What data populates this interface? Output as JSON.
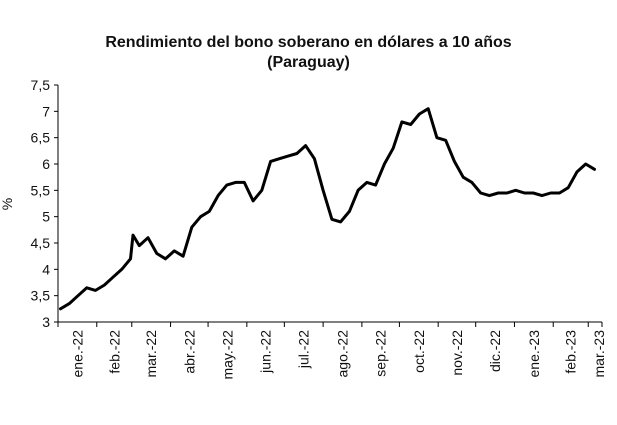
{
  "chart_data": {
    "type": "line",
    "title": "Rendimiento del bono soberano en dólares a 10 años",
    "subtitle": "(Paraguay)",
    "xlabel": "",
    "ylabel": "%",
    "ylim": [
      3,
      7.5
    ],
    "yticks": [
      "3",
      "3,5",
      "4",
      "4,5",
      "5",
      "5,5",
      "6",
      "6,5",
      "7",
      "7,5"
    ],
    "ytick_values": [
      3,
      3.5,
      4,
      4.5,
      5,
      5.5,
      6,
      6.5,
      7,
      7.5
    ],
    "categories": [
      "ene.-22",
      "feb.-22",
      "mar.-22",
      "abr.-22",
      "may.-22",
      "jun.-22",
      "jul.-22",
      "ago.-22",
      "sep.-22",
      "oct.-22",
      "nov.-22",
      "dic.-22",
      "ene.-23",
      "feb.-23",
      "mar.-23"
    ],
    "grid": false,
    "legend": "none",
    "line_color": "#000000",
    "series": [
      {
        "name": "",
        "x": [
          "2022-01-03",
          "2022-01-10",
          "2022-01-17",
          "2022-01-24",
          "2022-01-31",
          "2022-02-07",
          "2022-02-14",
          "2022-02-21",
          "2022-02-28",
          "2022-03-02",
          "2022-03-07",
          "2022-03-14",
          "2022-03-21",
          "2022-03-28",
          "2022-04-04",
          "2022-04-11",
          "2022-04-18",
          "2022-04-25",
          "2022-05-02",
          "2022-05-09",
          "2022-05-16",
          "2022-05-23",
          "2022-05-30",
          "2022-06-06",
          "2022-06-13",
          "2022-06-20",
          "2022-06-27",
          "2022-07-04",
          "2022-07-11",
          "2022-07-18",
          "2022-07-25",
          "2022-08-01",
          "2022-08-08",
          "2022-08-15",
          "2022-08-22",
          "2022-08-29",
          "2022-09-05",
          "2022-09-12",
          "2022-09-19",
          "2022-09-26",
          "2022-10-03",
          "2022-10-10",
          "2022-10-17",
          "2022-10-24",
          "2022-10-31",
          "2022-11-07",
          "2022-11-14",
          "2022-11-21",
          "2022-11-28",
          "2022-12-05",
          "2022-12-12",
          "2022-12-19",
          "2022-12-26",
          "2023-01-02",
          "2023-01-09",
          "2023-01-16",
          "2023-01-23",
          "2023-01-30",
          "2023-02-06",
          "2023-02-13",
          "2023-02-20",
          "2023-02-27",
          "2023-03-06"
        ],
        "values": [
          3.25,
          3.35,
          3.5,
          3.65,
          3.6,
          3.7,
          3.85,
          4.0,
          4.2,
          4.65,
          4.45,
          4.6,
          4.3,
          4.2,
          4.35,
          4.25,
          4.8,
          5.0,
          5.1,
          5.4,
          5.6,
          5.65,
          5.65,
          5.3,
          5.5,
          6.05,
          6.1,
          6.15,
          6.2,
          6.35,
          6.1,
          5.5,
          4.95,
          4.9,
          5.1,
          5.5,
          5.65,
          5.6,
          6.0,
          6.3,
          6.8,
          6.75,
          6.95,
          7.05,
          6.5,
          6.45,
          6.05,
          5.75,
          5.65,
          5.45,
          5.4,
          5.45,
          5.45,
          5.5,
          5.45,
          5.45,
          5.4,
          5.45,
          5.45,
          5.55,
          5.85,
          6.0,
          5.9
        ]
      }
    ]
  }
}
